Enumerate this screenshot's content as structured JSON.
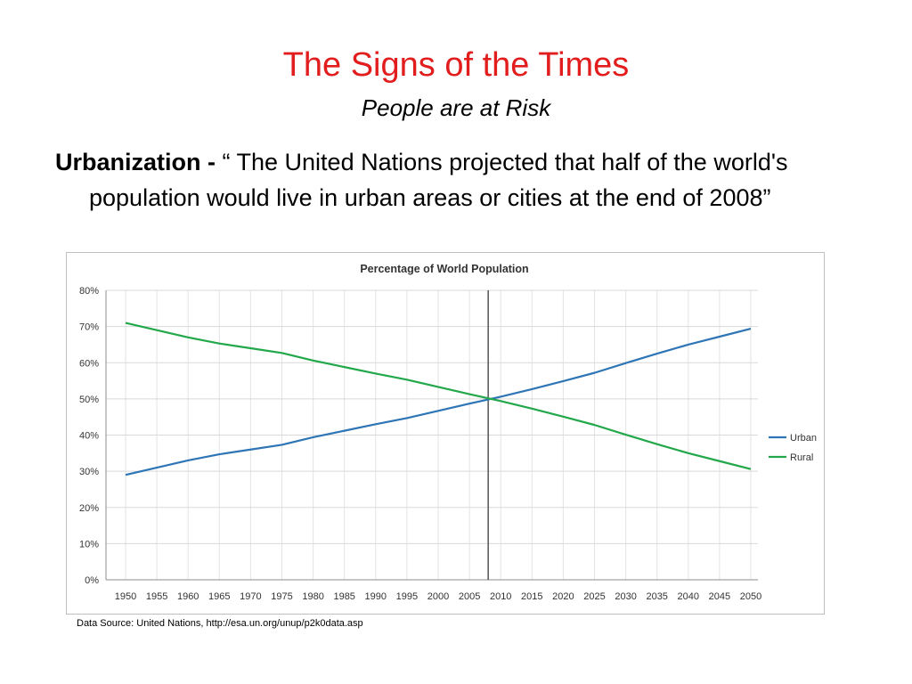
{
  "slide": {
    "title": "The Signs of the Times",
    "subtitle": "People are at Risk",
    "term": "Urbanization -",
    "quote": " “ The United Nations  projected that half of the world's population would live in urban areas or cities at the end of 2008”",
    "source": "Data Source: United Nations, http://esa.un.org/unup/p2k0data.asp"
  },
  "chart_data": {
    "type": "line",
    "title": "Percentage of World Population",
    "x": [
      1950,
      1955,
      1960,
      1965,
      1970,
      1975,
      1980,
      1985,
      1990,
      1995,
      2000,
      2005,
      2010,
      2015,
      2020,
      2025,
      2030,
      2035,
      2040,
      2045,
      2050
    ],
    "x_tick_labels": [
      "1950",
      "1955",
      "1960",
      "1965",
      "1970",
      "1975",
      "1980",
      "1985",
      "1990",
      "1995",
      "2000",
      "2005",
      "2010",
      "2015",
      "2020",
      "2025",
      "2030",
      "2035",
      "2040",
      "2045",
      "2050"
    ],
    "y_tick_labels": [
      "80%",
      "70%",
      "60%",
      "50%",
      "40%",
      "30%",
      "20%",
      "10%",
      "0%"
    ],
    "ylim": [
      0,
      80
    ],
    "xlim": [
      1950,
      2050
    ],
    "grid": true,
    "legend_position": "right",
    "marker_line_x": 2008,
    "series": [
      {
        "name": "Urban",
        "color": "#2e75b6",
        "values": [
          29.0,
          31.0,
          33.0,
          34.7,
          36.0,
          37.3,
          39.4,
          41.2,
          43.0,
          44.7,
          46.7,
          48.7,
          50.6,
          52.7,
          54.9,
          57.2,
          59.9,
          62.5,
          65.0,
          67.2,
          69.4
        ]
      },
      {
        "name": "Rural",
        "color": "#22a84a",
        "values": [
          71.0,
          69.0,
          67.0,
          65.3,
          64.0,
          62.7,
          60.6,
          58.8,
          57.0,
          55.3,
          53.3,
          51.3,
          49.4,
          47.3,
          45.1,
          42.8,
          40.1,
          37.5,
          35.0,
          32.8,
          30.6
        ]
      }
    ]
  }
}
